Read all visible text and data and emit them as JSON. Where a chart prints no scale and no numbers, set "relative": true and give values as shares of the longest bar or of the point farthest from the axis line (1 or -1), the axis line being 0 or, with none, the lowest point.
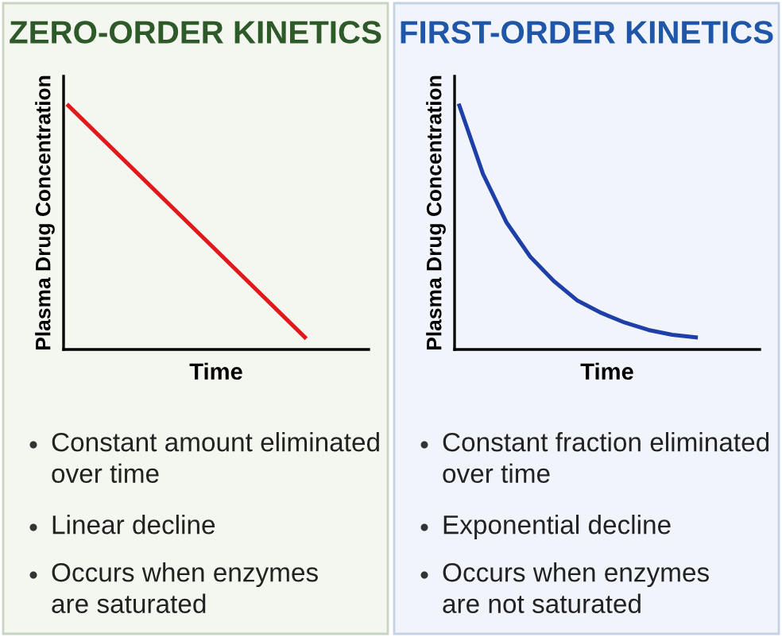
{
  "chart_data": [
    {
      "type": "line",
      "title": "ZERO-ORDER KINETICS",
      "xlabel": "Time",
      "ylabel": "Plasma Drug Concentration",
      "relative": true,
      "tick_labels": false,
      "marker": "none",
      "line_style": "solid",
      "categories": [
        null,
        null
      ],
      "series": [
        {
          "color": "#e0191c",
          "values": [
            1,
            0.05
          ]
        }
      ],
      "annotations": [
        "Constant amount eliminated\nover time",
        "Linear decline",
        "Occurs when enzymes\nare saturated"
      ]
    },
    {
      "type": "line",
      "title": "FIRST-ORDER KINETICS",
      "xlabel": "Time",
      "ylabel": "Plasma Drug Concentration",
      "relative": true,
      "tick_labels": false,
      "marker": "none",
      "line_style": "solid",
      "categories": [
        null,
        null,
        null,
        null,
        null,
        null,
        null,
        null,
        null,
        null,
        null
      ],
      "series": [
        {
          "color": "#1f3fa8",
          "values": [
            1,
            0.72,
            0.52,
            0.38,
            0.28,
            0.2,
            0.15,
            0.11,
            0.08,
            0.06,
            0.05
          ]
        }
      ],
      "annotations": [
        "Constant fraction eliminated\nover time",
        "Exponential decline",
        "Occurs when enzymes\nare not saturated"
      ]
    }
  ]
}
